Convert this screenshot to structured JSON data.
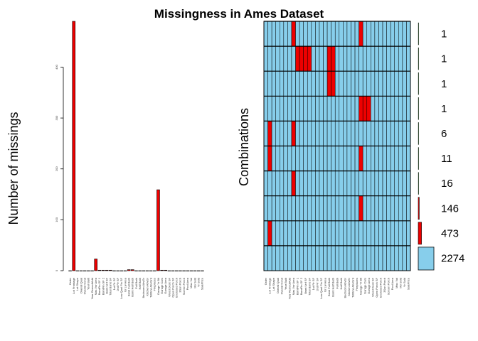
{
  "title": "Missingness in Ames Dataset",
  "colors": {
    "missing": "#ee0000",
    "present": "#87ceeb",
    "outline": "#000000"
  },
  "chart_data": [
    {
      "type": "bar",
      "ylabel": "Number of missings",
      "ylim": [
        0,
        490
      ],
      "yticks": [
        0,
        100,
        200,
        300,
        400
      ],
      "categories": [
        "Order",
        "Lot Frontage",
        "Lot Shape",
        "Overall Qual",
        "Overall Cond",
        "Year Built",
        "Year Remod/Add",
        "Mas Vnr Area",
        "BsmtFin SF 1",
        "BsmtFin SF 2",
        "Bsmt Unf SF",
        "Total Bsmt SF",
        "1st Flr SF",
        "2nd Flr SF",
        "Low Qual Fin SF",
        "Gr Liv Area",
        "Bsmt Full Bath",
        "Bsmt Half Bath",
        "Full Bath",
        "Half Bath",
        "Bedroom AbvGr",
        "Kitchen AbvGr",
        "TotRms AbvGrd",
        "Fireplaces",
        "Garage Yr Blt",
        "Garage Cars",
        "Garage Area",
        "Wood Deck SF",
        "Open Porch SF",
        "Enclosed Porch",
        "3Ssn Porch",
        "Screen Porch",
        "Pool Area",
        "Misc Val",
        "Mo Sold",
        "Yr Sold",
        "SalePrice"
      ],
      "values": [
        0,
        490,
        0,
        0,
        0,
        0,
        0,
        23,
        1,
        1,
        1,
        1,
        0,
        0,
        0,
        0,
        2,
        2,
        0,
        0,
        0,
        0,
        0,
        0,
        159,
        1,
        1,
        0,
        0,
        0,
        0,
        0,
        0,
        0,
        0,
        0,
        0
      ]
    },
    {
      "type": "heatmap",
      "ylabel": "Combinations",
      "columns": [
        "Order",
        "Lot Frontage",
        "Lot Shape",
        "Overall Qual",
        "Overall Cond",
        "Year Built",
        "Year Remod/Add",
        "Mas Vnr Area",
        "BsmtFin SF 1",
        "BsmtFin SF 2",
        "Bsmt Unf SF",
        "Total Bsmt SF",
        "1st Flr SF",
        "2nd Flr SF",
        "Low Qual Fin SF",
        "Gr Liv Area",
        "Bsmt Full Bath",
        "Bsmt Half Bath",
        "Full Bath",
        "Half Bath",
        "Bedroom AbvGr",
        "Kitchen AbvGr",
        "TotRms AbvGrd",
        "Fireplaces",
        "Garage Yr Blt",
        "Garage Cars",
        "Garage Area",
        "Wood Deck SF",
        "Open Porch SF",
        "Enclosed Porch",
        "3Ssn Porch",
        "Screen Porch",
        "Pool Area",
        "Misc Val",
        "Mo Sold",
        "Yr Sold",
        "SalePrice"
      ],
      "rows": [
        {
          "count": 1,
          "missing": [
            7,
            24
          ]
        },
        {
          "count": 1,
          "missing": [
            8,
            9,
            10,
            11,
            16,
            17
          ]
        },
        {
          "count": 1,
          "missing": [
            16,
            17
          ]
        },
        {
          "count": 1,
          "missing": [
            24,
            25,
            26
          ]
        },
        {
          "count": 6,
          "missing": [
            1,
            7
          ]
        },
        {
          "count": 11,
          "missing": [
            1,
            24
          ]
        },
        {
          "count": 16,
          "missing": [
            7
          ]
        },
        {
          "count": 146,
          "missing": [
            24
          ]
        },
        {
          "count": 473,
          "missing": [
            1
          ]
        },
        {
          "count": 2274,
          "missing": []
        }
      ]
    }
  ]
}
